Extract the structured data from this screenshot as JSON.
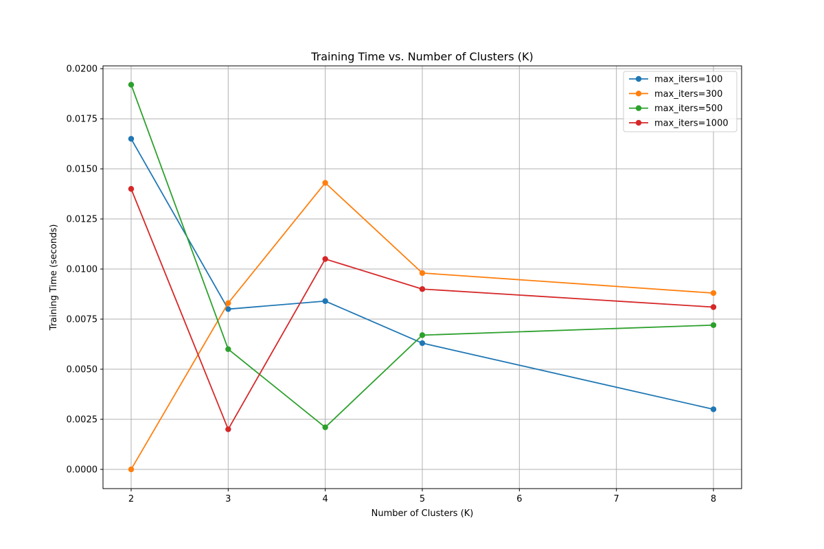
{
  "chart_data": {
    "type": "line",
    "title": "Training Time vs. Number of Clusters (K)",
    "xlabel": "Number of Clusters (K)",
    "ylabel": "Training Time (seconds)",
    "xlim": [
      1.71,
      8.29
    ],
    "ylim": [
      -0.00096,
      0.02014
    ],
    "xticks": [
      2,
      3,
      4,
      5,
      6,
      7,
      8
    ],
    "xtick_labels": [
      "2",
      "3",
      "4",
      "5",
      "6",
      "7",
      "8"
    ],
    "yticks": [
      0.0,
      0.0025,
      0.005,
      0.0075,
      0.01,
      0.0125,
      0.015,
      0.0175,
      0.02
    ],
    "ytick_labels": [
      "0.0000",
      "0.0025",
      "0.0050",
      "0.0075",
      "0.0100",
      "0.0125",
      "0.0150",
      "0.0175",
      "0.0200"
    ],
    "grid": true,
    "legend_position": "top-right",
    "x": [
      2,
      3,
      4,
      5,
      8
    ],
    "series": [
      {
        "name": "max_iters=100",
        "color": "#1f77b4",
        "values": [
          0.0165,
          0.008,
          0.0084,
          0.0063,
          0.003
        ]
      },
      {
        "name": "max_iters=300",
        "color": "#ff7f0e",
        "values": [
          0.0,
          0.0083,
          0.0143,
          0.0098,
          0.0088
        ]
      },
      {
        "name": "max_iters=500",
        "color": "#2ca02c",
        "values": [
          0.0192,
          0.006,
          0.0021,
          0.0067,
          0.0072
        ]
      },
      {
        "name": "max_iters=1000",
        "color": "#d62728",
        "values": [
          0.014,
          0.002,
          0.0105,
          0.009,
          0.0081
        ]
      }
    ]
  }
}
